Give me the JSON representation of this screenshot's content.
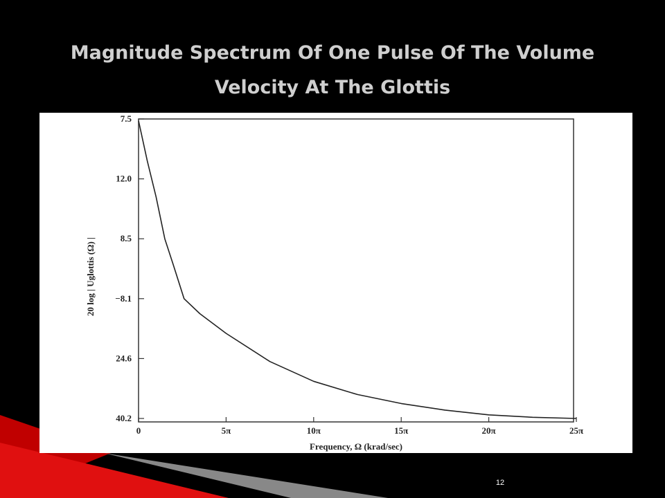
{
  "slide": {
    "title_lines": [
      "Magnitude Spectrum Of One Pulse Of The Volume",
      "Velocity At The Glottis"
    ],
    "page_number": "12"
  },
  "chart_data": {
    "type": "line",
    "xlabel": "Frequency, Ω (krad/sec)",
    "ylabel": "20 log | Uglottis (Ω) |",
    "x": [
      0,
      0.5,
      1,
      1.5,
      2,
      2.6,
      3.5,
      5,
      7.5,
      10,
      12.5,
      15,
      17.5,
      20,
      22.5,
      25
    ],
    "series": [
      {
        "color": "#222222",
        "values": [
          4.97,
          4.3,
          3.7,
          3.0,
          2.55,
          2.0,
          1.75,
          1.42,
          0.95,
          0.62,
          0.4,
          0.25,
          0.14,
          0.06,
          0.02,
          0
        ]
      }
    ],
    "xlim": [
      0,
      25
    ],
    "xticks": [
      0,
      {
        "value": 5,
        "label": "5π"
      },
      {
        "value": 10,
        "label": "10π"
      },
      {
        "value": 15,
        "label": "15π"
      },
      {
        "value": 20,
        "label": "20π"
      },
      {
        "value": 25,
        "label": "25π"
      }
    ],
    "ylim": [
      0,
      5
    ],
    "y_level_labels": [
      "40.2",
      "24.6",
      "−8.1",
      "8.5",
      "12.0",
      "7.5"
    ]
  }
}
